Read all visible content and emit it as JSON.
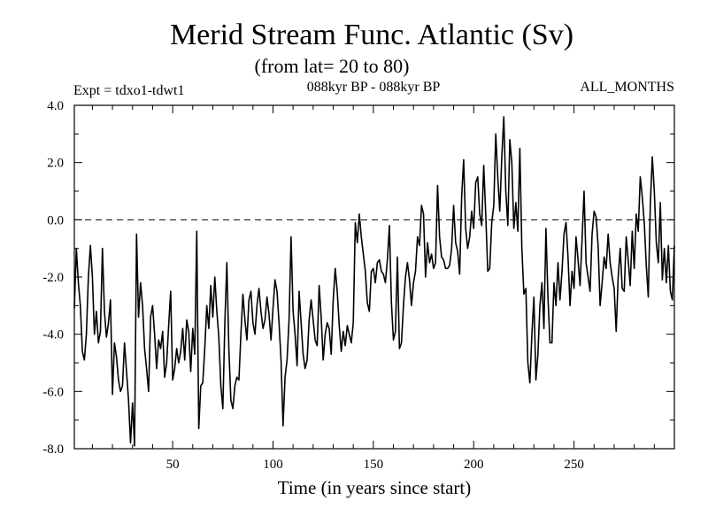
{
  "chart_data": {
    "type": "line",
    "title": "Merid Stream Func. Atlantic (Sv)",
    "subtitle": "(from lat= 20 to 80)",
    "experiment_label": "Expt = tdxo1-tdwt1",
    "period_label": "088kyr BP - 088kyr BP",
    "months_label": "ALL_MONTHS",
    "xlabel": "Time (in years since start)",
    "ylabel": "",
    "xlim": [
      1,
      300
    ],
    "ylim": [
      -8.0,
      4.0
    ],
    "x_ticks": [
      50,
      100,
      150,
      200,
      250
    ],
    "x_tick_labels": [
      "50",
      "100",
      "150",
      "200",
      "250"
    ],
    "y_ticks": [
      -8.0,
      -6.0,
      -4.0,
      -2.0,
      0.0,
      2.0,
      4.0
    ],
    "y_tick_labels": [
      "-8.0",
      "-6.0",
      "-4.0",
      "-2.0",
      "0.0",
      "2.0",
      "4.0"
    ],
    "reference_line": {
      "y": 0.0,
      "style": "dashed"
    },
    "grid": false,
    "x_start": 1,
    "x_step": 1,
    "values": [
      -3.1,
      -1.0,
      -2.2,
      -3.0,
      -4.6,
      -4.9,
      -4.0,
      -2.0,
      -0.9,
      -2.0,
      -4.0,
      -3.2,
      -4.3,
      -3.9,
      -1.0,
      -3.2,
      -4.1,
      -3.6,
      -2.8,
      -6.1,
      -4.3,
      -4.8,
      -5.6,
      -6.0,
      -5.8,
      -4.3,
      -5.3,
      -6.3,
      -7.8,
      -6.4,
      -7.9,
      -0.5,
      -3.4,
      -2.2,
      -3.0,
      -4.5,
      -5.2,
      -6.0,
      -3.4,
      -3.0,
      -4.0,
      -5.2,
      -4.2,
      -4.5,
      -3.9,
      -5.5,
      -5.0,
      -3.7,
      -2.5,
      -5.6,
      -5.2,
      -4.5,
      -5.0,
      -4.6,
      -3.8,
      -4.9,
      -3.5,
      -3.9,
      -5.3,
      -3.8,
      -4.7,
      -0.4,
      -7.3,
      -5.8,
      -5.7,
      -4.5,
      -3.0,
      -3.8,
      -2.3,
      -3.4,
      -2.0,
      -3.2,
      -4.1,
      -5.8,
      -6.6,
      -3.6,
      -1.5,
      -4.5,
      -6.3,
      -6.6,
      -5.8,
      -5.5,
      -5.6,
      -4.0,
      -2.6,
      -3.5,
      -4.2,
      -2.8,
      -2.5,
      -3.6,
      -4.0,
      -3.0,
      -2.4,
      -3.2,
      -3.8,
      -3.5,
      -2.7,
      -3.3,
      -4.2,
      -3.1,
      -2.1,
      -2.5,
      -3.6,
      -4.9,
      -7.2,
      -5.5,
      -4.9,
      -3.5,
      -0.6,
      -3.2,
      -4.0,
      -5.1,
      -2.5,
      -3.6,
      -4.7,
      -5.2,
      -4.9,
      -3.5,
      -2.8,
      -3.5,
      -4.2,
      -4.4,
      -2.3,
      -3.4,
      -4.9,
      -4.0,
      -3.6,
      -3.8,
      -4.7,
      -2.8,
      -1.7,
      -2.5,
      -3.7,
      -4.6,
      -3.9,
      -4.4,
      -3.7,
      -4.0,
      -4.3,
      -3.6,
      -0.1,
      -0.8,
      0.2,
      -0.6,
      -1.2,
      -1.8,
      -2.9,
      -3.2,
      -1.8,
      -1.7,
      -2.2,
      -1.5,
      -1.4,
      -1.8,
      -1.9,
      -2.2,
      -1.4,
      -0.2,
      -2.9,
      -4.2,
      -3.9,
      -1.3,
      -4.5,
      -4.3,
      -3.0,
      -2.0,
      -1.5,
      -2.1,
      -3.0,
      -2.2,
      -1.8,
      -0.6,
      -0.9,
      0.5,
      0.2,
      -2.0,
      -0.8,
      -1.5,
      -1.2,
      -1.7,
      -1.5,
      1.2,
      -0.6,
      -1.3,
      -1.4,
      -1.7,
      -1.7,
      -1.6,
      -1.0,
      0.5,
      -0.8,
      -1.1,
      -1.9,
      0.8,
      2.1,
      -0.3,
      -1.0,
      -0.6,
      0.3,
      -0.3,
      1.3,
      1.5,
      0.2,
      -0.2,
      1.9,
      0.2,
      -1.8,
      -1.7,
      -0.1,
      0.5,
      3.0,
      1.5,
      0.3,
      2.2,
      3.6,
      1.0,
      -0.2,
      2.8,
      2.0,
      -0.3,
      0.6,
      -0.4,
      2.5,
      -1.0,
      -2.6,
      -2.4,
      -5.0,
      -5.7,
      -4.0,
      -2.7,
      -5.6,
      -4.7,
      -3.0,
      -2.2,
      -3.8,
      -0.3,
      -2.7,
      -4.3,
      -4.3,
      -2.2,
      -3.0,
      -1.5,
      -2.8,
      -1.8,
      -0.5,
      -0.1,
      -1.3,
      -3.0,
      -1.8,
      -2.4,
      -0.6,
      -1.4,
      -2.3,
      -0.7,
      1.0,
      -1.5,
      -2.0,
      -2.5,
      -0.5,
      0.3,
      0.1,
      -0.9,
      -3.0,
      -2.2,
      -1.3,
      -1.7,
      -0.5,
      -1.5,
      -2.0,
      -2.4,
      -3.9,
      -2.0,
      -1.0,
      -2.4,
      -2.5,
      -0.6,
      -1.4,
      -2.3,
      -0.4,
      -1.7,
      0.2,
      -0.4,
      1.5,
      0.8,
      -0.1,
      -1.6,
      -2.7,
      0.5,
      2.2,
      1.0,
      -0.8,
      -1.5,
      0.6,
      -2.1,
      -1.0,
      -2.2,
      -0.9,
      -2.5,
      -2.8,
      -0.9
    ]
  }
}
